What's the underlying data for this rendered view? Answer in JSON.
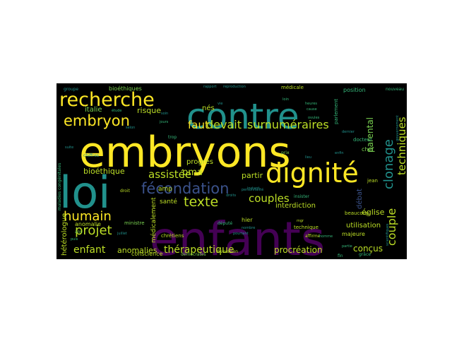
{
  "colors": {
    "background": "#000000",
    "page": "#ffffff",
    "palette": [
      "#fde725",
      "#bddf26",
      "#7ad151",
      "#35b779",
      "#22a884",
      "#21918c",
      "#2a788e",
      "#31688e",
      "#3b528b",
      "#433e85",
      "#482878",
      "#440154"
    ]
  },
  "words": [
    {
      "text": "embryons",
      "color": "#fde725"
    },
    {
      "text": "enfants",
      "color": "#440154"
    },
    {
      "text": "contre",
      "color": "#21918c"
    },
    {
      "text": "loi",
      "color": "#21918c"
    },
    {
      "text": "dignité",
      "color": "#fde725"
    },
    {
      "text": "recherche",
      "color": "#fde725"
    },
    {
      "text": "fécondation",
      "color": "#3b528b"
    },
    {
      "text": "embryon",
      "color": "#fde725"
    },
    {
      "text": "surnuméraires",
      "color": "#bddf26"
    },
    {
      "text": "devait",
      "color": "#bddf26"
    },
    {
      "text": "humain",
      "color": "#fde725"
    },
    {
      "text": "texte",
      "color": "#bddf26"
    },
    {
      "text": "assistée",
      "color": "#bddf26"
    },
    {
      "text": "projet",
      "color": "#bddf26"
    },
    {
      "text": "couples",
      "color": "#bddf26"
    },
    {
      "text": "faut",
      "color": "#fde725"
    },
    {
      "text": "clonage",
      "color": "#21918c"
    },
    {
      "text": "techniques",
      "color": "#bddf26"
    },
    {
      "text": "couple",
      "color": "#bddf26"
    },
    {
      "text": "thérapeutique",
      "color": "#bddf26"
    },
    {
      "text": "procréation",
      "color": "#bddf26"
    },
    {
      "text": "enfant",
      "color": "#bddf26"
    },
    {
      "text": "anomalies",
      "color": "#bddf26"
    },
    {
      "text": "conçus",
      "color": "#bddf26"
    },
    {
      "text": "pma",
      "color": "#bddf26"
    },
    {
      "text": "risque",
      "color": "#bddf26"
    },
    {
      "text": "bioéthique",
      "color": "#bddf26"
    },
    {
      "text": "italie",
      "color": "#7ad151"
    },
    {
      "text": "partir",
      "color": "#bddf26"
    },
    {
      "text": "église",
      "color": "#bddf26"
    },
    {
      "text": "interdiction",
      "color": "#bddf26"
    },
    {
      "text": "utilisation",
      "color": "#bddf26"
    },
    {
      "text": "débat",
      "color": "#3b528b"
    },
    {
      "text": "parental",
      "color": "#7ad151"
    },
    {
      "text": "progrès",
      "color": "#bddf26"
    },
    {
      "text": "nés",
      "color": "#bddf26"
    },
    {
      "text": "santé",
      "color": "#bddf26"
    },
    {
      "text": "amp",
      "color": "#bddf26"
    },
    {
      "text": "hétérologue",
      "color": "#bddf26"
    },
    {
      "text": "médicalement",
      "color": "#bddf26"
    },
    {
      "text": "bioéthiques",
      "color": "#7ad151"
    },
    {
      "text": "anomalie",
      "color": "#bddf26"
    },
    {
      "text": "conscience",
      "color": "#bddf26"
    },
    {
      "text": "chrétiens",
      "color": "#bddf26"
    },
    {
      "text": "ministre",
      "color": "#7ad151"
    },
    {
      "text": "hier",
      "color": "#bddf26"
    },
    {
      "text": "majeure",
      "color": "#bddf26"
    },
    {
      "text": "technique",
      "color": "#bddf26"
    },
    {
      "text": "beaucoup",
      "color": "#bddf26"
    },
    {
      "text": "médicale",
      "color": "#bddf26"
    },
    {
      "text": "position",
      "color": "#35b779"
    },
    {
      "text": "chef",
      "color": "#7ad151"
    },
    {
      "text": "docteur",
      "color": "#35b779"
    },
    {
      "text": "parlement",
      "color": "#35b779"
    },
    {
      "text": "jean",
      "color": "#bddf26"
    },
    {
      "text": "affirme",
      "color": "#bddf26"
    },
    {
      "text": "droit",
      "color": "#bddf26"
    },
    {
      "text": "insister",
      "color": "#35b779"
    },
    {
      "text": "député",
      "color": "#35b779"
    },
    {
      "text": "ans",
      "color": "#7ad151"
    },
    {
      "text": "discussion",
      "color": "#bddf26"
    },
    {
      "text": "démocrates",
      "color": "#7ad151"
    },
    {
      "text": "maladies congénitales",
      "color": "#35b779"
    },
    {
      "text": "nouveau",
      "color": "#35b779"
    },
    {
      "text": "grâce",
      "color": "#35b779"
    },
    {
      "text": "fin",
      "color": "#35b779"
    },
    {
      "text": "prix",
      "color": "#7ad151"
    },
    {
      "text": "trop",
      "color": "#35b779"
    },
    {
      "text": "jours",
      "color": "#35b779"
    },
    {
      "text": "étude",
      "color": "#35b779"
    },
    {
      "text": "groupe",
      "color": "#21918c"
    },
    {
      "text": "chiffres",
      "color": "#21918c"
    },
    {
      "text": "instant",
      "color": "#21918c"
    },
    {
      "text": "ovules",
      "color": "#35b779"
    },
    {
      "text": "mgr",
      "color": "#bddf26"
    },
    {
      "text": "homme",
      "color": "#35b779"
    },
    {
      "text": "puis",
      "color": "#35b779"
    },
    {
      "text": "cause",
      "color": "#35b779"
    },
    {
      "text": "heures",
      "color": "#35b779"
    },
    {
      "text": "partie",
      "color": "#35b779"
    },
    {
      "text": "loin",
      "color": "#35b779"
    },
    {
      "text": "gouvernement",
      "color": "#21918c"
    },
    {
      "text": "scientifiques",
      "color": "#21918c"
    },
    {
      "text": "juillet",
      "color": "#21918c"
    },
    {
      "text": "rapport",
      "color": "#21918c"
    },
    {
      "text": "droits",
      "color": "#21918c"
    },
    {
      "text": "vie",
      "color": "#21918c"
    },
    {
      "text": "soin",
      "color": "#21918c"
    },
    {
      "text": "suite",
      "color": "#21918c"
    },
    {
      "text": "selon",
      "color": "#21918c"
    },
    {
      "text": "lieu",
      "color": "#21918c"
    },
    {
      "text": "pourtant",
      "color": "#21918c"
    },
    {
      "text": "nombre",
      "color": "#21918c"
    },
    {
      "text": "personnalité",
      "color": "#21918c"
    },
    {
      "text": "reproduction",
      "color": "#21918c"
    },
    {
      "text": "enfin",
      "color": "#21918c"
    },
    {
      "text": "dernier",
      "color": "#21918c"
    }
  ]
}
